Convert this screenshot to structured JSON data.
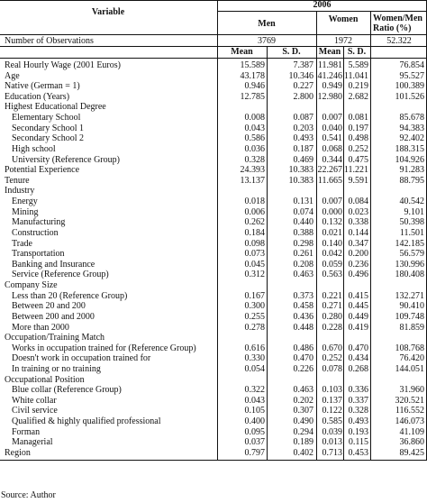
{
  "header": {
    "variable_label": "Variable",
    "year": "2006",
    "men": "Men",
    "women": "Women",
    "ratio_line1": "Women/Men",
    "ratio_line2": "Ratio (%)",
    "mean": "Mean",
    "sd": "S. D."
  },
  "observations": {
    "label": "Number of Observations",
    "men": "3769",
    "women": "1972",
    "ratio": "52.322"
  },
  "rows": [
    {
      "label": "Real Hourly Wage (2001 Euros)",
      "indent": 0,
      "mm": "15.589",
      "ms": "7.387",
      "wm": "11.981",
      "ws": "5.589",
      "r": "76.854"
    },
    {
      "label": "Age",
      "indent": 0,
      "mm": "43.178",
      "ms": "10.346",
      "wm": "41.246",
      "ws": "11.041",
      "r": "95.527"
    },
    {
      "label": "Native (German = 1)",
      "indent": 0,
      "mm": "0.946",
      "ms": "0.227",
      "wm": "0.949",
      "ws": "0.219",
      "r": "100.389"
    },
    {
      "label": "Education (Years)",
      "indent": 0,
      "mm": "12.785",
      "ms": "2.800",
      "wm": "12.980",
      "ws": "2.682",
      "r": "101.526"
    },
    {
      "label": "Highest Educational Degree",
      "indent": 0,
      "mm": "",
      "ms": "",
      "wm": "",
      "ws": "",
      "r": ""
    },
    {
      "label": "Elementary School",
      "indent": 1,
      "mm": "0.008",
      "ms": "0.087",
      "wm": "0.007",
      "ws": "0.081",
      "r": "85.678"
    },
    {
      "label": "Secondary School 1",
      "indent": 1,
      "mm": "0.043",
      "ms": "0.203",
      "wm": "0.040",
      "ws": "0.197",
      "r": "94.383"
    },
    {
      "label": "Secondary School 2",
      "indent": 1,
      "mm": "0.586",
      "ms": "0.493",
      "wm": "0.541",
      "ws": "0.498",
      "r": "92.402"
    },
    {
      "label": "High school",
      "indent": 1,
      "mm": "0.036",
      "ms": "0.187",
      "wm": "0.068",
      "ws": "0.252",
      "r": "188.315"
    },
    {
      "label": "University (Reference Group)",
      "indent": 1,
      "mm": "0.328",
      "ms": "0.469",
      "wm": "0.344",
      "ws": "0.475",
      "r": "104.926"
    },
    {
      "label": "Potential Experience",
      "indent": 0,
      "mm": "24.393",
      "ms": "10.383",
      "wm": "22.267",
      "ws": "11.221",
      "r": "91.283"
    },
    {
      "label": "Tenure",
      "indent": 0,
      "mm": "13.137",
      "ms": "10.383",
      "wm": "11.665",
      "ws": "9.591",
      "r": "88.795"
    },
    {
      "label": "Industry",
      "indent": 0,
      "mm": "",
      "ms": "",
      "wm": "",
      "ws": "",
      "r": ""
    },
    {
      "label": "Energy",
      "indent": 1,
      "mm": "0.018",
      "ms": "0.131",
      "wm": "0.007",
      "ws": "0.084",
      "r": "40.542"
    },
    {
      "label": "Mining",
      "indent": 1,
      "mm": "0.006",
      "ms": "0.074",
      "wm": "0.000",
      "ws": "0.023",
      "r": "9.101"
    },
    {
      "label": "Manufacturing",
      "indent": 1,
      "mm": "0.262",
      "ms": "0.440",
      "wm": "0.132",
      "ws": "0.338",
      "r": "50.398"
    },
    {
      "label": "Construction",
      "indent": 1,
      "mm": "0.184",
      "ms": "0.388",
      "wm": "0.021",
      "ws": "0.144",
      "r": "11.501"
    },
    {
      "label": "Trade",
      "indent": 1,
      "mm": "0.098",
      "ms": "0.298",
      "wm": "0.140",
      "ws": "0.347",
      "r": "142.185"
    },
    {
      "label": "Transportation",
      "indent": 1,
      "mm": "0.073",
      "ms": "0.261",
      "wm": "0.042",
      "ws": "0.200",
      "r": "56.579"
    },
    {
      "label": "Banking and Insurance",
      "indent": 1,
      "mm": "0.045",
      "ms": "0.208",
      "wm": "0.059",
      "ws": "0.236",
      "r": "130.996"
    },
    {
      "label": "Service (Reference Group)",
      "indent": 1,
      "mm": "0.312",
      "ms": "0.463",
      "wm": "0.563",
      "ws": "0.496",
      "r": "180.408"
    },
    {
      "label": "Company Size",
      "indent": 0,
      "mm": "",
      "ms": "",
      "wm": "",
      "ws": "",
      "r": ""
    },
    {
      "label": "Less than 20 (Reference Group)",
      "indent": 1,
      "mm": "0.167",
      "ms": "0.373",
      "wm": "0.221",
      "ws": "0.415",
      "r": "132.271"
    },
    {
      "label": "Between 20 and 200",
      "indent": 1,
      "mm": "0.300",
      "ms": "0.458",
      "wm": "0.271",
      "ws": "0.445",
      "r": "90.410"
    },
    {
      "label": "Between 200 and 2000",
      "indent": 1,
      "mm": "0.255",
      "ms": "0.436",
      "wm": "0.280",
      "ws": "0.449",
      "r": "109.748"
    },
    {
      "label": "More than 2000",
      "indent": 1,
      "mm": "0.278",
      "ms": "0.448",
      "wm": "0.228",
      "ws": "0.419",
      "r": "81.859"
    },
    {
      "label": "Occupation/Training Match",
      "indent": 0,
      "mm": "",
      "ms": "",
      "wm": "",
      "ws": "",
      "r": ""
    },
    {
      "label": "Works in occupation trained for (Reference Group)",
      "indent": 1,
      "mm": "0.616",
      "ms": "0.486",
      "wm": "0.670",
      "ws": "0.470",
      "r": "108.768"
    },
    {
      "label": "Doesn't work in occupation trained for",
      "indent": 1,
      "mm": "0.330",
      "ms": "0.470",
      "wm": "0.252",
      "ws": "0.434",
      "r": "76.420"
    },
    {
      "label": "In training or no training",
      "indent": 1,
      "mm": "0.054",
      "ms": "0.226",
      "wm": "0.078",
      "ws": "0.268",
      "r": "144.051"
    },
    {
      "label": "Occupational Position",
      "indent": 0,
      "mm": "",
      "ms": "",
      "wm": "",
      "ws": "",
      "r": ""
    },
    {
      "label": "Blue collar (Reference Group)",
      "indent": 1,
      "mm": "0.322",
      "ms": "0.463",
      "wm": "0.103",
      "ws": "0.336",
      "r": "31.960"
    },
    {
      "label": "White collar",
      "indent": 1,
      "mm": "0.043",
      "ms": "0.202",
      "wm": "0.137",
      "ws": "0.337",
      "r": "320.521"
    },
    {
      "label": "Civil service",
      "indent": 1,
      "mm": "0.105",
      "ms": "0.307",
      "wm": "0.122",
      "ws": "0.328",
      "r": "116.552"
    },
    {
      "label": "Qualified & highly qualified professional",
      "indent": 1,
      "mm": "0.400",
      "ms": "0.490",
      "wm": "0.585",
      "ws": "0.493",
      "r": "146.073"
    },
    {
      "label": "Forman",
      "indent": 1,
      "mm": "0.095",
      "ms": "0.294",
      "wm": "0.039",
      "ws": "0.193",
      "r": "41.109"
    },
    {
      "label": "Managerial",
      "indent": 1,
      "mm": "0.037",
      "ms": "0.189",
      "wm": "0.013",
      "ws": "0.115",
      "r": "36.860"
    },
    {
      "label": "Region",
      "indent": 0,
      "mm": "0.797",
      "ms": "0.402",
      "wm": "0.713",
      "ws": "0.453",
      "r": "89.425"
    }
  ],
  "source": "Source: Author"
}
